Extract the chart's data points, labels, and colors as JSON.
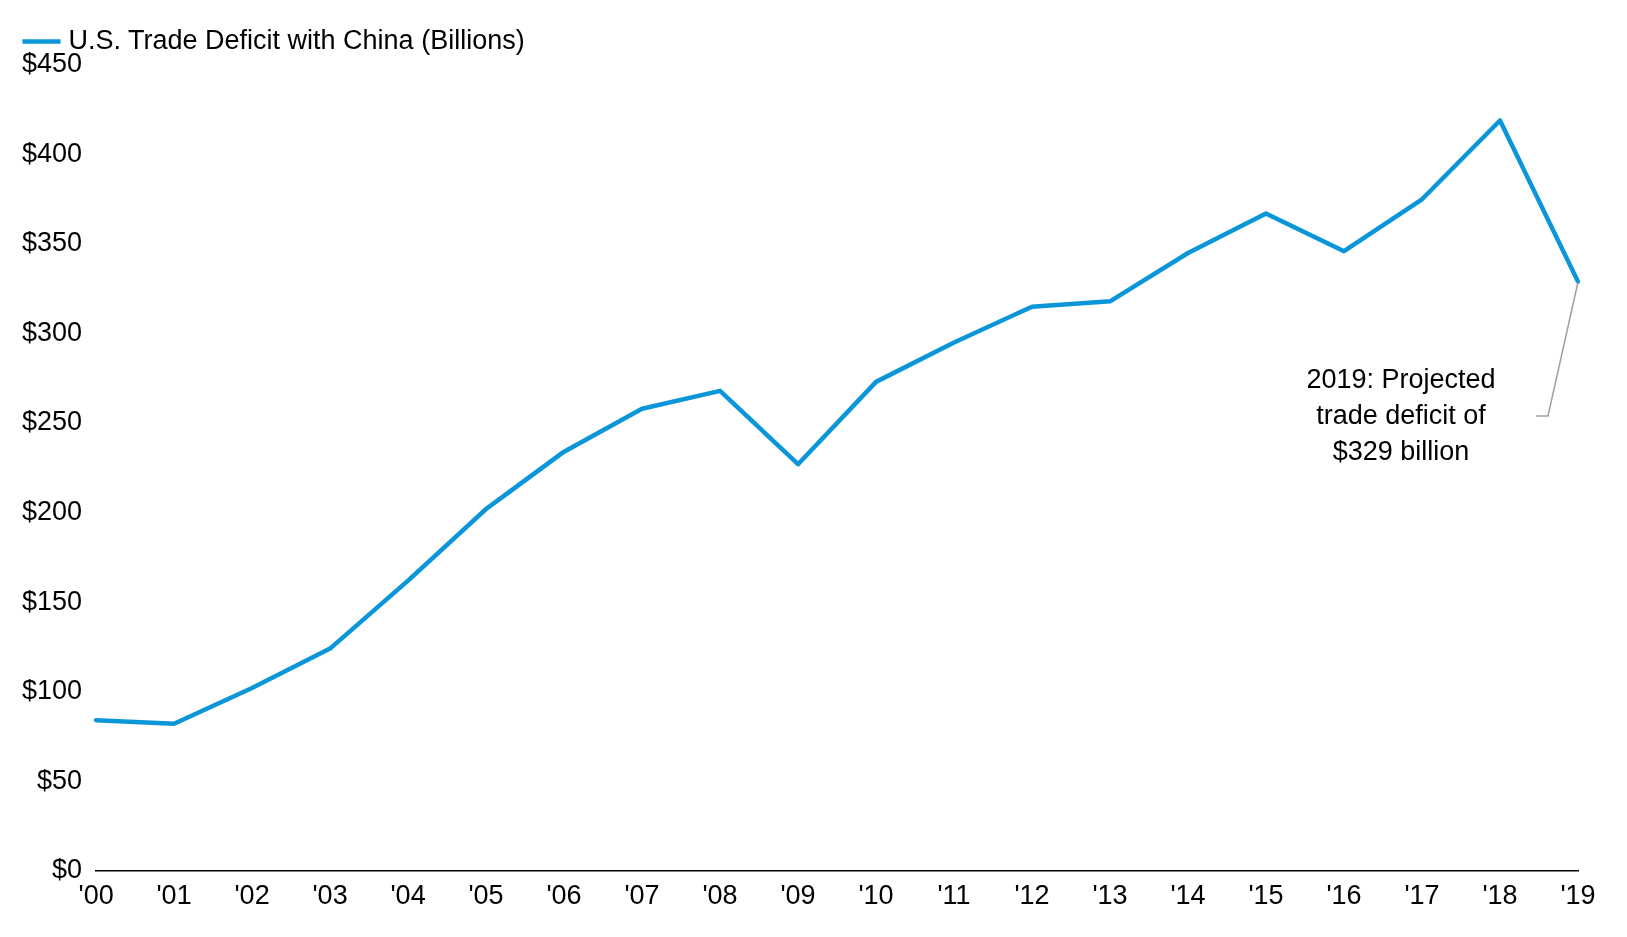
{
  "chart_data": {
    "type": "line",
    "categories": [
      "'00",
      "'01",
      "'02",
      "'03",
      "'04",
      "'05",
      "'06",
      "'07",
      "'08",
      "'09",
      "'10",
      "'11",
      "'12",
      "'13",
      "'14",
      "'15",
      "'16",
      "'17",
      "'18",
      "'19"
    ],
    "series": [
      {
        "name": "U.S. Trade Deficit with China (Billions)",
        "color": "#0a96d8",
        "values": [
          84,
          82,
          102,
          124,
          162,
          202,
          234,
          258,
          268,
          227,
          273,
          295,
          315,
          318,
          345,
          367,
          346,
          375,
          419,
          329
        ]
      }
    ],
    "ylim": [
      0,
      450
    ],
    "yticks": [
      {
        "value": 0,
        "label": "$0"
      },
      {
        "value": 50,
        "label": "$50"
      },
      {
        "value": 100,
        "label": "$100"
      },
      {
        "value": 150,
        "label": "$150"
      },
      {
        "value": 200,
        "label": "$200"
      },
      {
        "value": 250,
        "label": "$250"
      },
      {
        "value": 300,
        "label": "$300"
      },
      {
        "value": 350,
        "label": "$350"
      },
      {
        "value": 400,
        "label": "$400"
      },
      {
        "value": 450,
        "label": "$450"
      }
    ],
    "annotations": [
      "2019: Projected trade deficit of $329 billion"
    ],
    "grid": false,
    "legend": "top left",
    "marker": "none",
    "line_style": "solid"
  }
}
